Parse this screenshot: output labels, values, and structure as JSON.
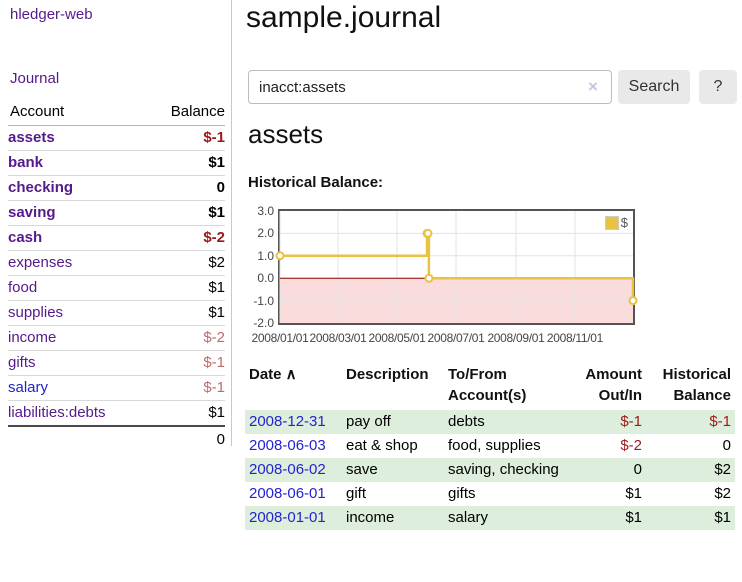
{
  "app": {
    "brand": "hledger-web",
    "nav_journal": "Journal"
  },
  "sidebar": {
    "columns": {
      "account": "Account",
      "balance": "Balance"
    },
    "accounts": [
      {
        "name": "assets",
        "balance": "$-1",
        "indent": 1,
        "bold": true,
        "balance_style": "negative"
      },
      {
        "name": "bank",
        "balance": "$1",
        "indent": 2,
        "bold": true,
        "balance_style": "normal"
      },
      {
        "name": "checking",
        "balance": "0",
        "indent": 3,
        "bold": true,
        "balance_style": "normal"
      },
      {
        "name": "saving",
        "balance": "$1",
        "indent": 3,
        "bold": true,
        "balance_style": "normal"
      },
      {
        "name": "cash",
        "balance": "$-2",
        "indent": 2,
        "bold": true,
        "balance_style": "negative"
      },
      {
        "name": "expenses",
        "balance": "$2",
        "indent": 1,
        "bold": false,
        "balance_style": "normal"
      },
      {
        "name": "food",
        "balance": "$1",
        "indent": 2,
        "bold": false,
        "balance_style": "normal"
      },
      {
        "name": "supplies",
        "balance": "$1",
        "indent": 2,
        "bold": false,
        "balance_style": "normal"
      },
      {
        "name": "income",
        "balance": "$-2",
        "indent": 1,
        "bold": false,
        "balance_style": "muted-negative"
      },
      {
        "name": "gifts",
        "balance": "$-1",
        "indent": 2,
        "bold": false,
        "balance_style": "muted-negative"
      },
      {
        "name": "salary",
        "balance": "$-1",
        "indent": 2,
        "bold": false,
        "balance_style": "muted-negative",
        "link_style": "blue"
      },
      {
        "name": "liabilities:debts",
        "balance": "$1",
        "indent": 1,
        "bold": false,
        "balance_style": "normal"
      }
    ],
    "total": "0"
  },
  "main": {
    "title": "sample.journal",
    "search": {
      "query": "inacct:assets",
      "clear_icon": "×",
      "search_button": "Search",
      "help_button": "?"
    },
    "account_heading": "assets",
    "chart_heading": "Historical Balance:"
  },
  "chart_data": {
    "type": "line",
    "title": "Historical Balance:",
    "legend": {
      "label": "$",
      "position": "top-right"
    },
    "series": [
      {
        "name": "$",
        "color": "#e8c240",
        "steps": true,
        "points": [
          {
            "date": "2008-01-01",
            "value": 1
          },
          {
            "date": "2008-06-01",
            "value": 2
          },
          {
            "date": "2008-06-02",
            "value": 2
          },
          {
            "date": "2008-06-03",
            "value": 0
          },
          {
            "date": "2008-12-31",
            "value": -1
          }
        ]
      }
    ],
    "x_range": [
      "2008-01-01",
      "2008-12-31"
    ],
    "x_ticks": [
      "2008/01/01",
      "2008/03/01",
      "2008/05/01",
      "2008/07/01",
      "2008/09/01",
      "2008/11/01"
    ],
    "y_ticks": [
      "3.0",
      "2.0",
      "1.0",
      "0.0",
      "-1.0",
      "-2.0"
    ],
    "ylim": [
      -2,
      3
    ],
    "grid": true,
    "gridline_color": "#e3e3e3",
    "negative_fill": "#fbdcdc",
    "zero_line_color": "#8b0000"
  },
  "register": {
    "columns": [
      {
        "label": "Date",
        "sort_icon": "∧",
        "align": "left"
      },
      {
        "label": "Description",
        "align": "left"
      },
      {
        "label": "To/From Account(s)",
        "align": "left"
      },
      {
        "label": "Amount Out/In",
        "align": "right"
      },
      {
        "label": "Historical Balance",
        "align": "right"
      }
    ],
    "rows": [
      {
        "date": "2008-12-31",
        "description": "pay off",
        "accounts": "debts",
        "amount": "$-1",
        "balance": "$-1",
        "amount_negative": true,
        "balance_negative": true,
        "shaded": true
      },
      {
        "date": "2008-06-03",
        "description": "eat & shop",
        "accounts": "food, supplies",
        "amount": "$-2",
        "balance": "0",
        "amount_negative": true,
        "balance_negative": false,
        "shaded": false
      },
      {
        "date": "2008-06-02",
        "description": "save",
        "accounts": "saving, checking",
        "amount": "0",
        "balance": "$2",
        "amount_negative": false,
        "balance_negative": false,
        "shaded": true
      },
      {
        "date": "2008-06-01",
        "description": "gift",
        "accounts": "gifts",
        "amount": "$1",
        "balance": "$2",
        "amount_negative": false,
        "balance_negative": false,
        "shaded": false
      },
      {
        "date": "2008-01-01",
        "description": "income",
        "accounts": "salary",
        "amount": "$1",
        "balance": "$1",
        "amount_negative": false,
        "balance_negative": false,
        "shaded": true
      }
    ],
    "shaded_row_color": "#ddeedd"
  },
  "colors": {
    "link_purple": "#551a8b",
    "link_blue": "#2323cf",
    "negative": "#9c1919",
    "muted_negative": "#bd6c6c",
    "accent_gold": "#e8c240"
  }
}
